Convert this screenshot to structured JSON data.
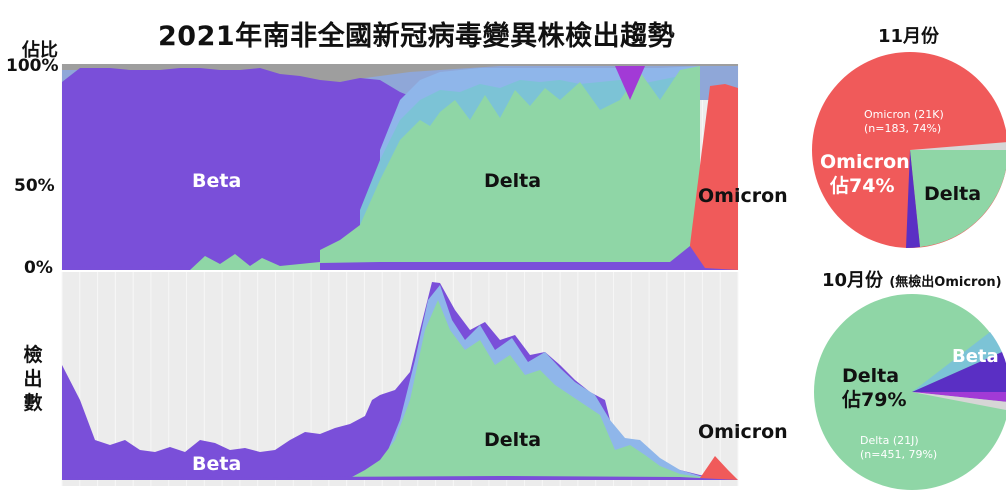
{
  "title": "2021年南非全國新冠病毒變異株檢出趨勢",
  "top_panel": {
    "y_title": "佔比",
    "ticks": [
      "100%",
      "50%",
      "0%"
    ]
  },
  "bottom_panel": {
    "y_title": "檢出數"
  },
  "labels": {
    "beta_top": "Beta",
    "delta_top": "Delta",
    "omicron_top": "Omicron",
    "beta_bottom": "Beta",
    "delta_bottom": "Delta",
    "omicron_bottom": "Omicron"
  },
  "pie_nov": {
    "title": "11月份",
    "label_big": "Omicron",
    "label_big_pct": "佔74%",
    "label_small": "Omicron (21K)",
    "label_small_n": "(n=183, 74%)",
    "label_delta": "Delta"
  },
  "pie_oct": {
    "title": "10月份",
    "subtitle": "(無檢出Omicron)",
    "label_big": "Delta",
    "label_big_pct": "佔79%",
    "label_small": "Delta (21J)",
    "label_small_n": "(n=451, 79%)",
    "label_beta": "Beta"
  },
  "colors": {
    "beta": "#7a4fd9",
    "beta_dark": "#5a2fc4",
    "delta": "#8fd6a6",
    "delta_mid": "#7cc3d6",
    "delta_blue": "#8fb6ea",
    "omicron": "#f05a5a",
    "gray": "#9e9e9e",
    "violet": "#a23ad6",
    "plot_bg": "#ececec"
  },
  "chart_data": [
    {
      "type": "area",
      "panel": "proportion",
      "stacked": true,
      "normalized": true,
      "ylim": [
        0,
        100
      ],
      "y_unit": "%",
      "n_points": 39,
      "series": [
        {
          "name": "Beta",
          "values": [
            100,
            99,
            99,
            99,
            99,
            99,
            99,
            98,
            98,
            98,
            97,
            97,
            95,
            95,
            94,
            94,
            94,
            90,
            85,
            75,
            55,
            40,
            25,
            13,
            9,
            6,
            4,
            5,
            5,
            5,
            6,
            7,
            6,
            6,
            7,
            15,
            4,
            3,
            0
          ]
        },
        {
          "name": "Delta",
          "values": [
            0,
            0,
            0,
            0,
            0,
            0,
            1,
            3,
            2,
            2,
            2,
            3,
            2,
            3,
            3,
            3,
            3,
            6,
            10,
            18,
            38,
            52,
            65,
            72,
            72,
            74,
            74,
            73,
            75,
            75,
            78,
            80,
            88,
            88,
            88,
            85,
            95,
            20,
            0
          ]
        },
        {
          "name": "Omicron",
          "values": [
            0,
            0,
            0,
            0,
            0,
            0,
            0,
            0,
            0,
            0,
            0,
            0,
            0,
            0,
            0,
            0,
            0,
            0,
            0,
            0,
            0,
            0,
            0,
            0,
            0,
            0,
            0,
            0,
            0,
            0,
            0,
            0,
            0,
            0,
            0,
            0,
            0,
            74,
            92
          ]
        }
      ]
    },
    {
      "type": "area",
      "panel": "counts",
      "stacked": true,
      "n_points": 39,
      "series": [
        {
          "name": "Beta",
          "values": [
            58,
            40,
            18,
            17,
            18,
            14,
            13,
            20,
            16,
            14,
            12,
            15,
            18,
            22,
            25,
            26,
            30,
            36,
            45,
            42,
            35,
            22,
            18,
            10,
            6,
            5,
            4,
            4,
            4,
            4,
            4,
            4,
            3,
            3,
            3,
            2,
            2,
            0,
            0
          ]
        },
        {
          "name": "Delta",
          "values": [
            0,
            0,
            0,
            0,
            0,
            0,
            0,
            0,
            0,
            0,
            0,
            0,
            0,
            0,
            0,
            0,
            0,
            3,
            12,
            35,
            65,
            90,
            110,
            85,
            75,
            80,
            60,
            55,
            52,
            40,
            45,
            35,
            25,
            18,
            12,
            8,
            3,
            2,
            0
          ]
        },
        {
          "name": "Omicron",
          "values": [
            0,
            0,
            0,
            0,
            0,
            0,
            0,
            0,
            0,
            0,
            0,
            0,
            0,
            0,
            0,
            0,
            0,
            0,
            0,
            0,
            0,
            0,
            0,
            0,
            0,
            0,
            0,
            0,
            0,
            0,
            0,
            0,
            0,
            0,
            0,
            0,
            0,
            7,
            10
          ]
        }
      ]
    },
    {
      "type": "pie",
      "title": "11月份",
      "slices": [
        {
          "label": "Omicron (21K)",
          "value": 74
        },
        {
          "label": "Delta",
          "value": 23
        },
        {
          "label": "Beta",
          "value": 3
        }
      ]
    },
    {
      "type": "pie",
      "title": "10月份",
      "slices": [
        {
          "label": "Delta (21J)",
          "value": 79
        },
        {
          "label": "Beta",
          "value": 13
        },
        {
          "label": "Other",
          "value": 8
        }
      ]
    }
  ]
}
